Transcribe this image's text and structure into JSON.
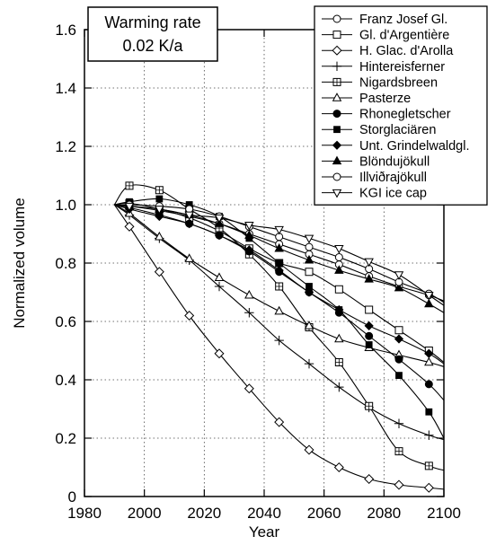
{
  "annotation": {
    "line1": "Warming rate",
    "line2": "0.02 K/a"
  },
  "chart_data": {
    "type": "line",
    "title": "",
    "xlabel": "Year",
    "ylabel": "Normalized volume",
    "xlim": [
      1980,
      2100
    ],
    "ylim": [
      0,
      1.6
    ],
    "x_ticks": [
      1980,
      2000,
      2020,
      2040,
      2060,
      2080,
      2100
    ],
    "x_tick_labels": [
      "1980",
      "2000",
      "2020",
      "2040",
      "2060",
      "2080",
      "2100"
    ],
    "y_ticks": [
      0,
      0.2,
      0.4,
      0.6,
      0.8,
      1.0,
      1.2,
      1.4,
      1.6
    ],
    "y_tick_labels": [
      "0",
      "0.2",
      "0.4",
      "0.6",
      "0.8",
      "1.0",
      "1.2",
      "1.4",
      "1.6"
    ],
    "grid": true,
    "legend_position": "top-right",
    "series": [
      {
        "name": "Franz Josef Gl.",
        "marker": "circle-open",
        "x": [
          1990,
          1995,
          2005,
          2015,
          2025,
          2035,
          2045,
          2055,
          2065,
          2075,
          2085,
          2095,
          2100
        ],
        "y": [
          1.0,
          0.995,
          0.98,
          0.96,
          0.935,
          0.9,
          0.865,
          0.83,
          0.795,
          0.755,
          0.72,
          0.69,
          0.67
        ]
      },
      {
        "name": "Gl. d'Argentière",
        "marker": "square-open",
        "x": [
          1990,
          1995,
          2005,
          2015,
          2025,
          2035,
          2045,
          2055,
          2065,
          2075,
          2085,
          2095,
          2100
        ],
        "y": [
          1.0,
          1.005,
          0.985,
          0.955,
          0.91,
          0.85,
          0.8,
          0.77,
          0.71,
          0.64,
          0.57,
          0.5,
          0.46
        ]
      },
      {
        "name": "H. Glac. d'Arolla",
        "marker": "diamond-open",
        "x": [
          1990,
          1995,
          2005,
          2015,
          2025,
          2035,
          2045,
          2055,
          2065,
          2075,
          2085,
          2095,
          2100
        ],
        "y": [
          1.0,
          0.925,
          0.77,
          0.62,
          0.49,
          0.37,
          0.255,
          0.16,
          0.1,
          0.06,
          0.04,
          0.03,
          0.025
        ]
      },
      {
        "name": "Hintereisferner",
        "marker": "plus",
        "x": [
          1990,
          1995,
          2005,
          2015,
          2025,
          2035,
          2045,
          2055,
          2065,
          2075,
          2085,
          2095,
          2100
        ],
        "y": [
          1.0,
          0.965,
          0.885,
          0.81,
          0.72,
          0.63,
          0.535,
          0.455,
          0.375,
          0.305,
          0.25,
          0.21,
          0.195
        ]
      },
      {
        "name": "Nigardsbreen",
        "marker": "square-plus",
        "x": [
          1990,
          1995,
          2005,
          2015,
          2025,
          2035,
          2045,
          2055,
          2065,
          2075,
          2085,
          2095,
          2100
        ],
        "y": [
          1.0,
          1.065,
          1.05,
          0.985,
          0.92,
          0.83,
          0.72,
          0.58,
          0.46,
          0.31,
          0.155,
          0.105,
          0.09
        ]
      },
      {
        "name": "Pasterze",
        "marker": "triangle-open",
        "x": [
          1990,
          1995,
          2005,
          2015,
          2025,
          2035,
          2045,
          2055,
          2065,
          2075,
          2085,
          2095,
          2100
        ],
        "y": [
          1.0,
          0.97,
          0.89,
          0.815,
          0.75,
          0.69,
          0.635,
          0.585,
          0.54,
          0.51,
          0.485,
          0.46,
          0.445
        ]
      },
      {
        "name": "Rhonegletscher",
        "marker": "circle-filled",
        "x": [
          1990,
          1995,
          2005,
          2015,
          2025,
          2035,
          2045,
          2055,
          2065,
          2075,
          2085,
          2095,
          2100
        ],
        "y": [
          1.0,
          0.99,
          0.965,
          0.935,
          0.895,
          0.84,
          0.77,
          0.7,
          0.63,
          0.55,
          0.47,
          0.385,
          0.33
        ]
      },
      {
        "name": "Storglaciären",
        "marker": "square-filled",
        "x": [
          1990,
          1995,
          2005,
          2015,
          2025,
          2035,
          2045,
          2055,
          2065,
          2075,
          2085,
          2095,
          2100
        ],
        "y": [
          1.0,
          1.01,
          1.02,
          1.0,
          0.96,
          0.885,
          0.8,
          0.72,
          0.64,
          0.52,
          0.415,
          0.29,
          0.2
        ]
      },
      {
        "name": "Unt. Grindelwaldgl.",
        "marker": "diamond-filled",
        "x": [
          1990,
          1995,
          2005,
          2015,
          2025,
          2035,
          2045,
          2055,
          2065,
          2075,
          2085,
          2095,
          2100
        ],
        "y": [
          1.0,
          0.985,
          0.96,
          0.935,
          0.895,
          0.845,
          0.775,
          0.7,
          0.64,
          0.585,
          0.54,
          0.49,
          0.455
        ]
      },
      {
        "name": "Blöndujökull",
        "marker": "triangle-filled",
        "x": [
          1990,
          1995,
          2005,
          2015,
          2025,
          2035,
          2045,
          2055,
          2065,
          2075,
          2085,
          2095,
          2100
        ],
        "y": [
          1.0,
          0.995,
          0.985,
          0.965,
          0.935,
          0.895,
          0.85,
          0.81,
          0.775,
          0.745,
          0.715,
          0.66,
          0.63
        ]
      },
      {
        "name": "Illviðrajökull",
        "marker": "circle-open",
        "x": [
          1990,
          1995,
          2005,
          2015,
          2025,
          2035,
          2045,
          2055,
          2065,
          2075,
          2085,
          2095,
          2100
        ],
        "y": [
          1.0,
          1.0,
          0.995,
          0.985,
          0.96,
          0.925,
          0.89,
          0.855,
          0.82,
          0.78,
          0.735,
          0.695,
          0.665
        ]
      },
      {
        "name": "KGI ice cap",
        "marker": "triangle-down-open",
        "x": [
          1990,
          1995,
          2005,
          2015,
          2025,
          2035,
          2045,
          2055,
          2065,
          2075,
          2085,
          2095,
          2100
        ],
        "y": [
          1.0,
          0.995,
          0.985,
          0.965,
          0.955,
          0.93,
          0.915,
          0.885,
          0.85,
          0.805,
          0.76,
          0.69,
          0.655
        ]
      }
    ]
  }
}
